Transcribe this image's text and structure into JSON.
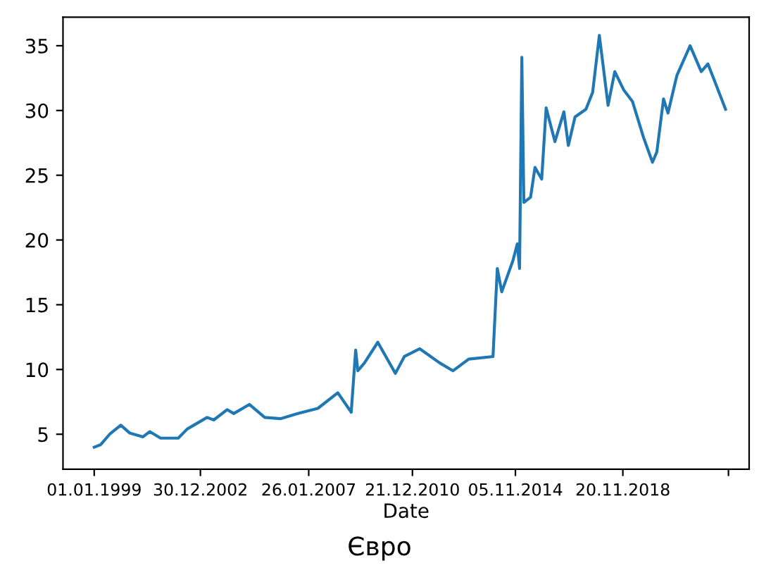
{
  "chart_data": {
    "type": "line",
    "title": "Євро",
    "xlabel": "Date",
    "series": [
      {
        "color": "#1f77b4",
        "x": [
          "1999-01",
          "1999-04",
          "1999-08",
          "2000-01",
          "2000-05",
          "2000-11",
          "2001-02",
          "2001-07",
          "2002-03",
          "2002-07",
          "2003-04",
          "2003-07",
          "2004-01",
          "2004-04",
          "2004-11",
          "2005-06",
          "2006-01",
          "2006-09",
          "2007-06",
          "2008-03",
          "2008-09",
          "2008-11",
          "2008-12",
          "2009-03",
          "2009-09",
          "2010-05",
          "2010-09",
          "2011-04",
          "2012-01",
          "2012-07",
          "2013-02",
          "2014-01",
          "2014-03",
          "2014-05",
          "2014-10",
          "2014-12",
          "2015-01",
          "2015-02",
          "2015-03",
          "2015-06",
          "2015-08",
          "2015-11",
          "2016-01",
          "2016-05",
          "2016-09",
          "2016-11",
          "2017-02",
          "2017-07",
          "2017-10",
          "2018-01",
          "2018-05",
          "2018-08",
          "2018-12",
          "2019-04",
          "2019-09",
          "2020-01",
          "2020-03",
          "2020-06",
          "2020-08",
          "2020-12",
          "2021-06",
          "2021-11",
          "2022-02",
          "2022-10"
        ],
        "values": [
          4.0,
          4.2,
          5.0,
          5.7,
          5.1,
          4.8,
          5.2,
          4.7,
          4.7,
          5.4,
          6.3,
          6.1,
          6.9,
          6.6,
          7.3,
          6.3,
          6.2,
          6.6,
          7.0,
          8.2,
          6.7,
          11.5,
          9.9,
          10.5,
          12.1,
          9.7,
          11.0,
          11.6,
          10.5,
          9.9,
          10.8,
          11.0,
          17.8,
          16.0,
          18.4,
          19.7,
          17.8,
          34.1,
          22.9,
          23.3,
          25.6,
          24.7,
          30.2,
          27.6,
          29.9,
          27.3,
          29.5,
          30.1,
          31.4,
          35.8,
          30.4,
          33.0,
          31.6,
          30.7,
          27.9,
          26.0,
          26.8,
          30.9,
          29.8,
          32.7,
          35.0,
          33.0,
          33.6,
          30.1
        ]
      }
    ],
    "xlim": [
      "1997-10-29",
      "2023-08-21"
    ],
    "ylim": [
      2.3,
      37.2
    ],
    "xticks": [
      {
        "value": "1999-01-01",
        "label": "01.01.1999"
      },
      {
        "value": "2002-12-30",
        "label": "30.12.2002"
      },
      {
        "value": "2007-01-26",
        "label": "26.01.2007"
      },
      {
        "value": "2010-12-21",
        "label": "21.12.2010"
      },
      {
        "value": "2014-11-05",
        "label": "05.11.2014"
      },
      {
        "value": "2018-11-20",
        "label": "20.11.2018"
      },
      {
        "value": "2022-11-10",
        "label": null
      }
    ],
    "yticks": [
      5,
      10,
      15,
      20,
      25,
      30,
      35
    ],
    "grid": false,
    "marker": "none",
    "line_style": "solid"
  }
}
